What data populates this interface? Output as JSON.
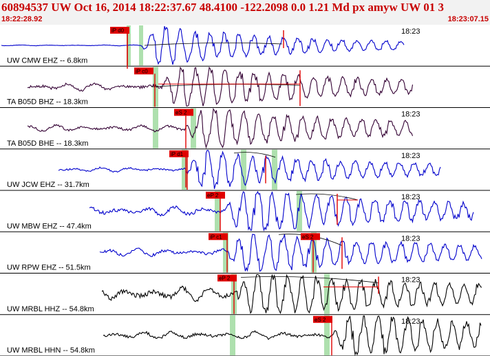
{
  "header": {
    "title": "60894537 UW Oct 16, 2014 18:22:37.67    48.4100 -122.2098  0.0 1.21 Md px amyw UW 01   3",
    "start_time": "18:22:28.92",
    "end_time": "18:23:07.15"
  },
  "colors": {
    "header_text": "#c80000",
    "divider": "#000000",
    "pick_red": "#e00000",
    "pick_green": "#aee0ae",
    "trace_blue": "#0000cc",
    "trace_dark": "#330033",
    "trace_black": "#000000"
  },
  "panels": [
    {
      "station": "UW CMW EHZ -- 6.8km",
      "time": "18:23",
      "color": "blue",
      "picks": [
        "iP d0"
      ]
    },
    {
      "station": "TA B05D BHZ -- 18.3km",
      "time": "",
      "color": "dark",
      "picks": [
        "iP c0"
      ]
    },
    {
      "station": "TA B05D BHE -- 18.3km",
      "time": "18:23",
      "color": "dark",
      "picks": [
        "eS 2"
      ]
    },
    {
      "station": "UW JCW EHZ -- 31.7km",
      "time": "18:23",
      "color": "blue",
      "picks": [
        "iP d1"
      ]
    },
    {
      "station": "UW MBW EHZ -- 47.4km",
      "time": "18:23",
      "color": "blue",
      "picks": [
        "eP 2"
      ]
    },
    {
      "station": "UW RPW EHZ -- 51.5km",
      "time": "18:23",
      "color": "blue",
      "picks": [
        "iP c1",
        "eS 2"
      ]
    },
    {
      "station": "UW MRBL HHZ -- 54.8km",
      "time": "18:23",
      "color": "black",
      "picks": [
        "eP 2"
      ]
    },
    {
      "station": "UW MRBL HHN -- 54.8km",
      "time": "18:23",
      "color": "black",
      "picks": [
        "eS 2"
      ]
    }
  ]
}
